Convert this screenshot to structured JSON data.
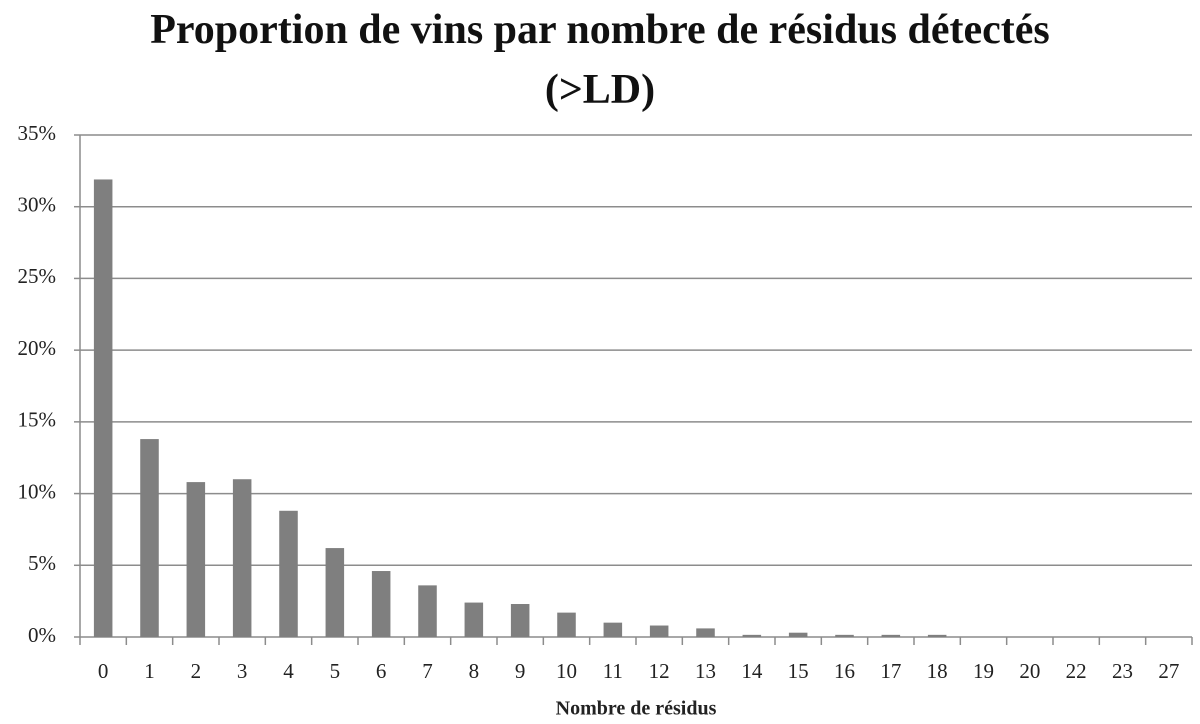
{
  "chart_data": {
    "type": "bar",
    "title": "Proportion de vins par nombre de résidus détectés (>LD)",
    "x_label": "Nombre de résidus",
    "categories": [
      "0",
      "1",
      "2",
      "3",
      "4",
      "5",
      "6",
      "7",
      "8",
      "9",
      "10",
      "11",
      "12",
      "13",
      "14",
      "15",
      "16",
      "17",
      "18",
      "19",
      "20",
      "22",
      "23",
      "27"
    ],
    "values": [
      31.9,
      13.8,
      10.8,
      11.0,
      8.8,
      6.2,
      4.6,
      3.6,
      2.4,
      2.3,
      1.7,
      1.0,
      0.8,
      0.6,
      0.15,
      0.3,
      0.15,
      0.15,
      0.15,
      0,
      0,
      0,
      0,
      0
    ],
    "color": "#7f7f7f",
    "ylim": [
      0,
      35
    ],
    "yticks": [
      {
        "value": 0,
        "label": "0%"
      },
      {
        "value": 5,
        "label": "5%"
      },
      {
        "value": 10,
        "label": "10%"
      },
      {
        "value": 15,
        "label": "15%"
      },
      {
        "value": 20,
        "label": "20%"
      },
      {
        "value": 25,
        "label": "25%"
      },
      {
        "value": 30,
        "label": "30%"
      },
      {
        "value": 35,
        "label": "35%"
      }
    ],
    "grid": true
  }
}
